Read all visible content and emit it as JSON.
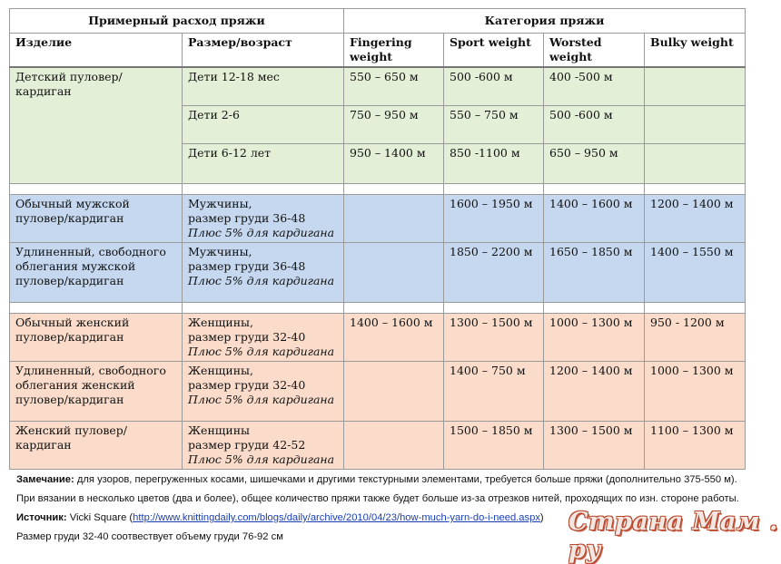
{
  "header": {
    "left_title": "Примерный расход пряжи",
    "right_title": "Категория пряжи"
  },
  "columns": [
    "Изделие",
    "Размер/возраст",
    "Fingering weight",
    "Sport weight",
    "Worsted weight",
    "Bulky weight"
  ],
  "groups": {
    "kids": {
      "item": "Детский пуловер/кардиган",
      "rows": [
        {
          "size": "Дети 12-18 мес",
          "fingering": "550 – 650 м",
          "sport": "500 -600 м",
          "worsted": "400 -500 м",
          "bulky": ""
        },
        {
          "size": "Дети 2-6",
          "fingering": "750 – 950 м",
          "sport": "550 – 750 м",
          "worsted": "500 -600 м",
          "bulky": ""
        },
        {
          "size": "Дети 6-12 лет",
          "fingering": "950 – 1400 м",
          "sport": "850 -1100 м",
          "worsted": "650 – 950 м",
          "bulky": ""
        }
      ]
    },
    "men": [
      {
        "item": "Обычный мужской пуловер/кардиган",
        "size1": "Мужчины,",
        "size2": "размер груди 36-48",
        "size3": "Плюс 5% для кардигана",
        "fingering": "",
        "sport": "1600 – 1950 м",
        "worsted": "1400 – 1600 м",
        "bulky": "1200 – 1400 м"
      },
      {
        "item": "Удлиненный, свободного облегания мужской пуловер/кардиган",
        "size1": "Мужчины,",
        "size2": "размер груди 36-48",
        "size3": "Плюс 5% для кардигана",
        "fingering": "",
        "sport": "1850 – 2200 м",
        "worsted": "1650 – 1850 м",
        "bulky": "1400 – 1550 м"
      }
    ],
    "women": [
      {
        "item": "Обычный женский пуловер/кардиган",
        "size1": "Женщины,",
        "size2": "размер груди 32-40",
        "size3": "Плюс 5% для кардигана",
        "fingering": "1400 – 1600 м",
        "sport": "1300 – 1500 м",
        "worsted": "1000 – 1300 м",
        "bulky": "950 - 1200 м"
      },
      {
        "item": "Удлиненный, свободного облегания женский пуловер/кардиган",
        "size1": "Женщины,",
        "size2": "размер груди 32-40",
        "size3": "Плюс 5% для кардигана",
        "fingering": "",
        "sport": "1400 – 750 м",
        "worsted": "1200 – 1400 м",
        "bulky": "1000 – 1300 м"
      },
      {
        "item": "Женский пуловер/кардиган",
        "size1": "Женщины",
        "size2": "размер груди 42-52",
        "size3": "Плюс 5% для кардигана",
        "fingering": "",
        "sport": "1500 – 1850 м",
        "worsted": "1300 – 1500 м",
        "bulky": "1100 – 1300 м"
      }
    ]
  },
  "notes": {
    "note_label": "Замечание:",
    "note_text": " для узоров, перегруженных косами, шишечками и другими текстурными элементами, требуется больше пряжи (дополнительно 375-550 м).",
    "note_line2": "При вязании в несколько цветов (два и более), общее количество пряжи также будет больше из-за отрезков нитей, проходящих по изн. стороне работы.",
    "source_label": "Источник:",
    "source_name": " Vicki Square (",
    "source_url": "http://www.knittingdaily.com/blogs/daily/archive/2010/04/23/how-much-yarn-do-i-need.aspx",
    "source_close": ")",
    "size_note": "Размер груди 32-40 соотвествует  объему груди 76-92 см"
  },
  "watermark": "Страна Мам . ру",
  "colors": {
    "kids_row": "#e3efd6",
    "men_row": "#c5d8f0",
    "women_row": "#fbdcca",
    "link": "#1a3fb5"
  }
}
